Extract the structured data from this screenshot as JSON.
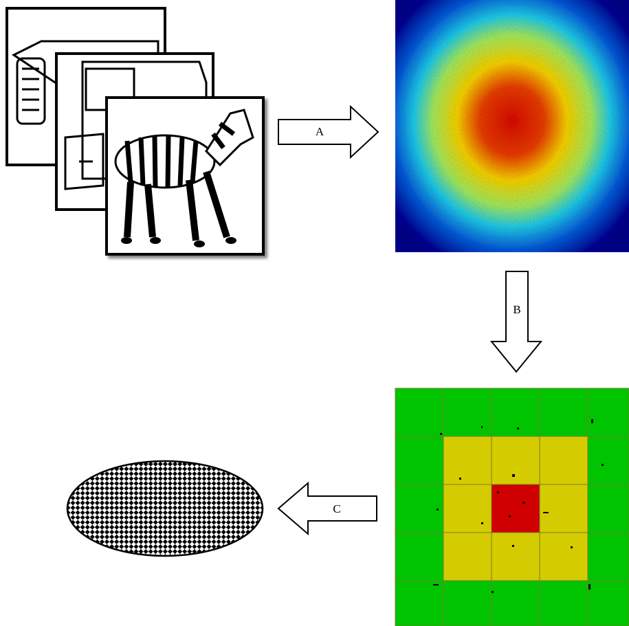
{
  "arrows": [
    {
      "label": "A"
    },
    {
      "label": "B"
    },
    {
      "label": "C"
    }
  ]
}
